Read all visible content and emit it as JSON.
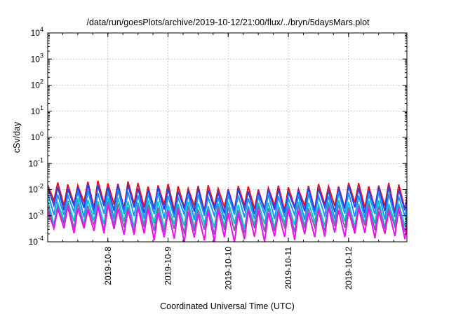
{
  "chart_data": {
    "type": "line",
    "title": "/data/run/goesPlots/archive/2019-10-12/21:00/flux/../bryn/5daysMars.plot",
    "xlabel": "Coordinated Universal Time (UTC)",
    "ylabel": "cSv/day",
    "yscale": "log",
    "ylim": [
      0.0001,
      10000
    ],
    "xlim_days": [
      7.0,
      12.97
    ],
    "grid": true,
    "y_ticks": [
      {
        "base": "10",
        "exp": "4"
      },
      {
        "base": "10",
        "exp": "3"
      },
      {
        "base": "10",
        "exp": "2"
      },
      {
        "base": "10",
        "exp": "1"
      },
      {
        "base": "10",
        "exp": "0"
      },
      {
        "base": "10",
        "exp": "-1"
      },
      {
        "base": "10",
        "exp": "-2"
      },
      {
        "base": "10",
        "exp": "-3"
      },
      {
        "base": "10",
        "exp": "-4"
      }
    ],
    "x_ticks": [
      "2019-10-8",
      "2019-10-9",
      "2019-10-10",
      "2019-10-11",
      "2019-10-12"
    ],
    "x_tick_days": [
      8,
      9,
      10,
      11,
      12
    ],
    "sawtooth_period_days": 0.1667,
    "series": [
      {
        "color": "#e8101a",
        "peaks": [
          0.015,
          0.02,
          0.014,
          0.012,
          0.012,
          0.016,
          0.015
        ],
        "troughs": [
          0.003,
          0.0025,
          0.002,
          0.002,
          0.002,
          0.0025,
          0.0015
        ]
      },
      {
        "color": "#2244ee",
        "peaks": [
          0.011,
          0.015,
          0.01,
          0.009,
          0.009,
          0.012,
          0.011
        ],
        "troughs": [
          0.0022,
          0.0018,
          0.0015,
          0.0015,
          0.0016,
          0.0018,
          0.0012
        ]
      },
      {
        "color": "#1e90ff",
        "peaks": [
          0.0065,
          0.009,
          0.006,
          0.0055,
          0.0055,
          0.007,
          0.0065
        ],
        "troughs": [
          0.0012,
          0.001,
          0.0009,
          0.0009,
          0.0009,
          0.001,
          0.0008
        ]
      },
      {
        "color": "#00c8d8",
        "peaks": [
          0.0035,
          0.0045,
          0.003,
          0.0028,
          0.0028,
          0.0035,
          0.0032
        ],
        "troughs": [
          0.0006,
          0.0005,
          0.0004,
          0.0004,
          0.00045,
          0.0005,
          0.0004
        ]
      },
      {
        "color": "#7a6aa8",
        "peaks": [
          0.0025,
          0.003,
          0.002,
          0.002,
          0.002,
          0.0025,
          0.0022
        ],
        "troughs": [
          0.0004,
          0.00035,
          0.00025,
          0.00025,
          0.0003,
          0.00035,
          0.0003
        ]
      },
      {
        "color": "#ee10ee",
        "peaks": [
          0.0018,
          0.0022,
          0.0015,
          0.0014,
          0.0015,
          0.0018,
          0.0016
        ],
        "troughs": [
          0.0003,
          0.00025,
          0.00012,
          0.00012,
          0.00015,
          0.0002,
          0.00015
        ]
      }
    ]
  }
}
